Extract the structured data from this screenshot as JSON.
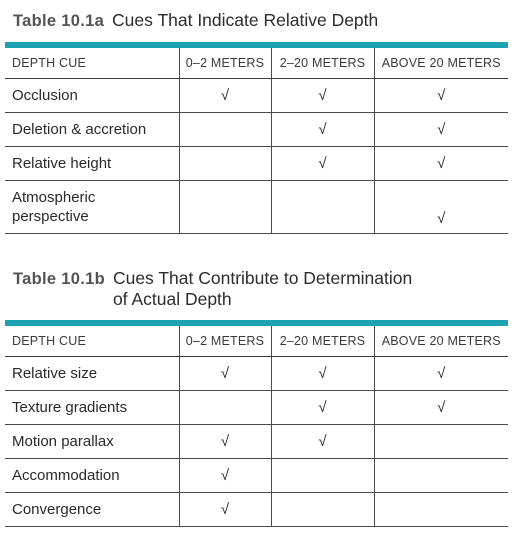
{
  "table_a": {
    "number": "Table 10.1a",
    "title": "Cues That Indicate Relative Depth",
    "headers": [
      "DEPTH CUE",
      "0–2 METERS",
      "2–20 METERS",
      "ABOVE 20 METERS"
    ],
    "rows": [
      {
        "cue": "Occlusion",
        "c1": "√",
        "c2": "√",
        "c3": "√"
      },
      {
        "cue": "Deletion & accretion",
        "c1": "",
        "c2": "√",
        "c3": "√"
      },
      {
        "cue": "Relative height",
        "c1": "",
        "c2": "√",
        "c3": "√"
      },
      {
        "cue_line1": "Atmospheric",
        "cue_line2": "perspective",
        "c1": "",
        "c2": "",
        "c3": "√"
      }
    ]
  },
  "table_b": {
    "number": "Table 10.1b",
    "title_line1": "Cues That Contribute to Determination",
    "title_line2": "of Actual Depth",
    "headers": [
      "DEPTH CUE",
      "0–2 METERS",
      "2–20 METERS",
      "ABOVE 20 METERS"
    ],
    "rows": [
      {
        "cue": "Relative size",
        "c1": "√",
        "c2": "√",
        "c3": "√"
      },
      {
        "cue": "Texture gradients",
        "c1": "",
        "c2": "√",
        "c3": "√"
      },
      {
        "cue": "Motion parallax",
        "c1": "√",
        "c2": "√",
        "c3": ""
      },
      {
        "cue": "Accommodation",
        "c1": "√",
        "c2": "",
        "c3": ""
      },
      {
        "cue": "Convergence",
        "c1": "√",
        "c2": "",
        "c3": ""
      }
    ]
  },
  "colors": {
    "accent_rule": "#1fa1b4",
    "caption_number": "#545454",
    "text": "#2a2a2a"
  }
}
